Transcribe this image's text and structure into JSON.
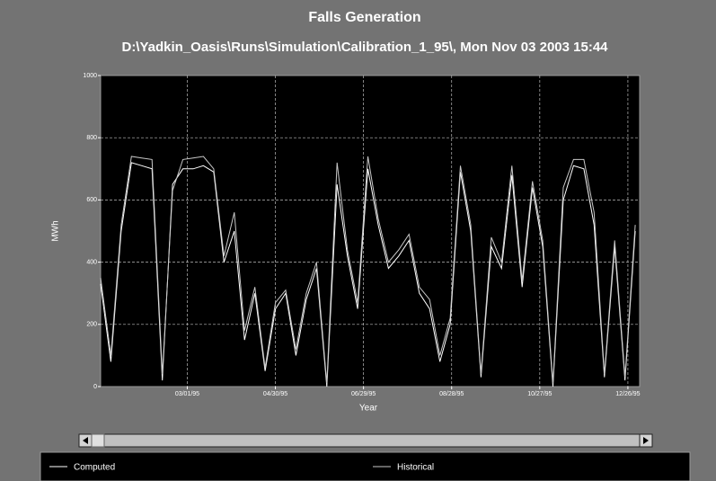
{
  "chart_data": {
    "type": "line",
    "title": "Falls Generation",
    "subtitle": "D:\\Yadkin_Oasis\\Runs\\Simulation\\Calibration_1_95\\, Mon Nov 03 2003 15:44",
    "x_label": "Year",
    "y_label": "MWh",
    "x": [
      "1995-01-01",
      "1995-01-08",
      "1995-01-15",
      "1995-01-22",
      "1995-01-29",
      "1995-02-05",
      "1995-02-12",
      "1995-02-19",
      "1995-02-26",
      "1995-03-05",
      "1995-03-12",
      "1995-03-19",
      "1995-03-26",
      "1995-04-02",
      "1995-04-09",
      "1995-04-16",
      "1995-04-23",
      "1995-04-30",
      "1995-05-07",
      "1995-05-14",
      "1995-05-21",
      "1995-05-28",
      "1995-06-04",
      "1995-06-11",
      "1995-06-18",
      "1995-06-25",
      "1995-07-02",
      "1995-07-09",
      "1995-07-16",
      "1995-07-23",
      "1995-07-30",
      "1995-08-06",
      "1995-08-13",
      "1995-08-20",
      "1995-08-27",
      "1995-09-03",
      "1995-09-10",
      "1995-09-17",
      "1995-09-24",
      "1995-10-01",
      "1995-10-08",
      "1995-10-15",
      "1995-10-22",
      "1995-10-29",
      "1995-11-05",
      "1995-11-12",
      "1995-11-19",
      "1995-11-26",
      "1995-12-03",
      "1995-12-10",
      "1995-12-17",
      "1995-12-24",
      "1995-12-31"
    ],
    "series": [
      {
        "name": "Computed",
        "color": "#ffffff",
        "values": [
          330,
          80,
          500,
          720,
          710,
          700,
          20,
          650,
          700,
          700,
          710,
          690,
          400,
          500,
          150,
          300,
          50,
          250,
          300,
          100,
          280,
          380,
          0,
          650,
          420,
          250,
          700,
          520,
          380,
          420,
          470,
          300,
          250,
          80,
          200,
          690,
          500,
          30,
          450,
          380,
          680,
          320,
          640,
          450,
          0,
          600,
          710,
          700,
          520,
          30,
          450,
          20,
          500
        ]
      },
      {
        "name": "Historical",
        "color": "#c8c8c8",
        "values": [
          350,
          100,
          520,
          740,
          735,
          730,
          40,
          630,
          730,
          735,
          740,
          700,
          420,
          560,
          180,
          320,
          60,
          270,
          310,
          120,
          300,
          400,
          10,
          720,
          440,
          270,
          740,
          540,
          400,
          440,
          490,
          320,
          280,
          100,
          220,
          710,
          520,
          40,
          480,
          400,
          710,
          340,
          660,
          470,
          10,
          640,
          730,
          730,
          560,
          40,
          470,
          30,
          520
        ]
      }
    ],
    "xlim": [
      "1995-01-01",
      "1996-01-03"
    ],
    "xticks": [
      {
        "value": "1995-03-01",
        "label": "03/01/95"
      },
      {
        "value": "1995-04-30",
        "label": "04/30/95"
      },
      {
        "value": "1995-06-29",
        "label": "06/29/95"
      },
      {
        "value": "1995-08-28",
        "label": "08/28/95"
      },
      {
        "value": "1995-10-27",
        "label": "10/27/95"
      },
      {
        "value": "1995-12-26",
        "label": "12/26/95"
      }
    ],
    "ylim": [
      0,
      1000
    ],
    "yticks": [
      0,
      200,
      400,
      600,
      800,
      1000
    ],
    "grid": true
  }
}
